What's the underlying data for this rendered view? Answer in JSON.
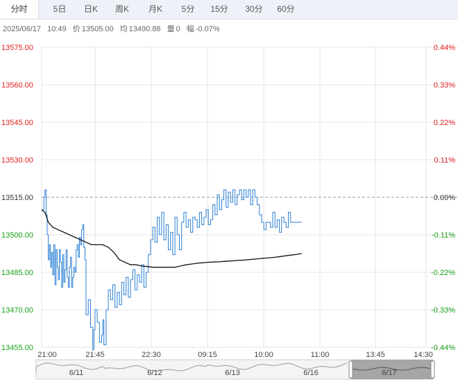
{
  "tabs": [
    {
      "label": "分时",
      "active": true
    },
    {
      "label": "5日",
      "active": false
    },
    {
      "label": "日K",
      "active": false
    },
    {
      "label": "周K",
      "active": false
    },
    {
      "label": "月K",
      "active": false
    },
    {
      "label": "5分",
      "active": false
    },
    {
      "label": "15分",
      "active": false
    },
    {
      "label": "30分",
      "active": false
    },
    {
      "label": "60分",
      "active": false
    }
  ],
  "info": {
    "date": "2025/06/17",
    "time": "10:49",
    "price_label": "价",
    "price": "13505.00",
    "avg_label": "均",
    "avg": "13490.88",
    "volume_label": "量",
    "volume": "0",
    "change_label": "幅",
    "change": "-0.07%"
  },
  "colors": {
    "up": "#e02020",
    "down": "#1aa01a",
    "price_line": "#2a7fd4",
    "avg_line": "#111111",
    "grid": "#e6e6e6",
    "ref_line": "#999999"
  },
  "chart_data": {
    "type": "line",
    "ylim": [
      13455,
      13575
    ],
    "y_ticks": [
      "13575.00",
      "13560.00",
      "13545.00",
      "13530.00",
      "13515.00",
      "13500.00",
      "13485.00",
      "13470.00",
      "13455.00"
    ],
    "pct_ticks": [
      "0.44%",
      "0.33%",
      "0.22%",
      "0.11%",
      "0.00%",
      "-0.11%",
      "-0.22%",
      "-0.33%",
      "-0.44%"
    ],
    "ref_price": 13515,
    "x_ticks": [
      "21:00",
      "21:45",
      "22:30",
      "09:15",
      "10:00",
      "11:00",
      "13:45",
      "14:30"
    ],
    "total_minutes": 346,
    "series": [
      {
        "kind": "price",
        "x": [
          0,
          1,
          2,
          3,
          4,
          5,
          6,
          7,
          8,
          9,
          10,
          11,
          12,
          13,
          14,
          15,
          16,
          17,
          18,
          19,
          20,
          21,
          22,
          23,
          24,
          25,
          26,
          27,
          28,
          29,
          30,
          31,
          32,
          33,
          34,
          35,
          36,
          37,
          38,
          39,
          40,
          42,
          44,
          46,
          47,
          48,
          50,
          52,
          54,
          55,
          56,
          58,
          60,
          62,
          64,
          66,
          68,
          70,
          72,
          74,
          76,
          78,
          80,
          82,
          84,
          86,
          88,
          90,
          92,
          94,
          96,
          98,
          100,
          102,
          104,
          106,
          108,
          110,
          112,
          114,
          116,
          118,
          120,
          122,
          124,
          126,
          128,
          130,
          132,
          134,
          136,
          138,
          140,
          142,
          144,
          146,
          148,
          150,
          152,
          154,
          156,
          158,
          160,
          162,
          164,
          166,
          168,
          170,
          172,
          174,
          176,
          178,
          180,
          182,
          184,
          186,
          188,
          190,
          192,
          194,
          196,
          198,
          200,
          202,
          204,
          206,
          208,
          210,
          212,
          214,
          216,
          218,
          220,
          222,
          224,
          226,
          228,
          230,
          232,
          234
        ],
        "y": [
          13510,
          13510,
          13515,
          13518,
          13508,
          13500,
          13490,
          13496,
          13487,
          13493,
          13484,
          13496,
          13480,
          13494,
          13487,
          13482,
          13494,
          13489,
          13479,
          13492,
          13481,
          13486,
          13494,
          13483,
          13479,
          13487,
          13491,
          13479,
          13483,
          13487,
          13485,
          13494,
          13496,
          13491,
          13499,
          13496,
          13502,
          13504,
          13495,
          13490,
          13468,
          13474,
          13463,
          13454,
          13462,
          13470,
          13465,
          13457,
          13460,
          13466,
          13456,
          13470,
          13478,
          13474,
          13480,
          13471,
          13477,
          13472,
          13481,
          13476,
          13483,
          13475,
          13482,
          13486,
          13478,
          13484,
          13481,
          13488,
          13479,
          13485,
          13492,
          13498,
          13503,
          13497,
          13507,
          13500,
          13509,
          13498,
          13504,
          13494,
          13501,
          13492,
          13507,
          13500,
          13494,
          13505,
          13509,
          13503,
          13506,
          13501,
          13507,
          13506,
          13503,
          13509,
          13504,
          13507,
          13510,
          13504,
          13506,
          13512,
          13508,
          13516,
          13510,
          13514,
          13518,
          13511,
          13517,
          13513,
          13518,
          13512,
          13516,
          13518,
          13514,
          13518,
          13515,
          13518,
          13512,
          13518,
          13515,
          13512,
          13508,
          13505,
          13502,
          13505,
          13505,
          13503,
          13509,
          13503,
          13506,
          13501,
          13507,
          13505,
          13503,
          13509,
          13505,
          13505,
          13505,
          13505,
          13505,
          13505
        ]
      },
      {
        "kind": "avg",
        "x": [
          0,
          3,
          6,
          10,
          15,
          20,
          25,
          30,
          35,
          40,
          45,
          50,
          55,
          60,
          65,
          70,
          75,
          80,
          85,
          90,
          95,
          100,
          105,
          110,
          115,
          120,
          125,
          130,
          135,
          140,
          145,
          150,
          155,
          160,
          165,
          170,
          175,
          180,
          185,
          190,
          195,
          200,
          205,
          210,
          215,
          220,
          225,
          230,
          234
        ],
        "y": [
          13510,
          13509,
          13505,
          13503,
          13502,
          13501,
          13500,
          13499,
          13498,
          13497,
          13496,
          13496,
          13496,
          13495,
          13493,
          13490,
          13489,
          13488,
          13488,
          13487.5,
          13487.3,
          13487,
          13487,
          13487,
          13487,
          13487,
          13487.5,
          13488,
          13488.3,
          13488.6,
          13488.8,
          13489,
          13489.1,
          13489.2,
          13489.4,
          13489.5,
          13489.7,
          13489.8,
          13490,
          13490.2,
          13490.4,
          13490.6,
          13490.8,
          13491,
          13491.3,
          13491.6,
          13491.9,
          13492.2,
          13492.5
        ]
      }
    ],
    "navigator": {
      "dates": [
        "6/11",
        "6/12",
        "6/13",
        "6/16",
        "6/17"
      ]
    }
  }
}
